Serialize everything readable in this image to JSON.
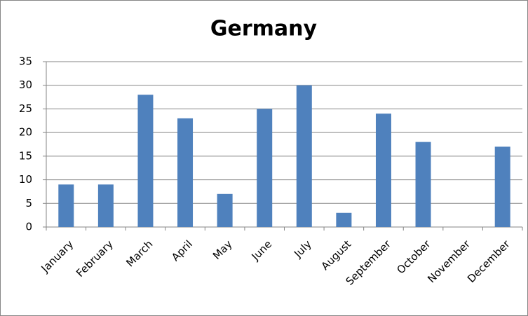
{
  "chart_data": {
    "type": "bar",
    "title": "Germany",
    "categories": [
      "January",
      "February",
      "March",
      "April",
      "May",
      "June",
      "July",
      "August",
      "September",
      "October",
      "November",
      "December"
    ],
    "values": [
      9,
      9,
      28,
      23,
      7,
      25,
      30,
      3,
      24,
      18,
      0,
      17
    ],
    "color": "#4f81bd",
    "ylim": [
      0,
      35
    ],
    "yticks": [
      0,
      5,
      10,
      15,
      20,
      25,
      30,
      35
    ],
    "grid": true
  }
}
